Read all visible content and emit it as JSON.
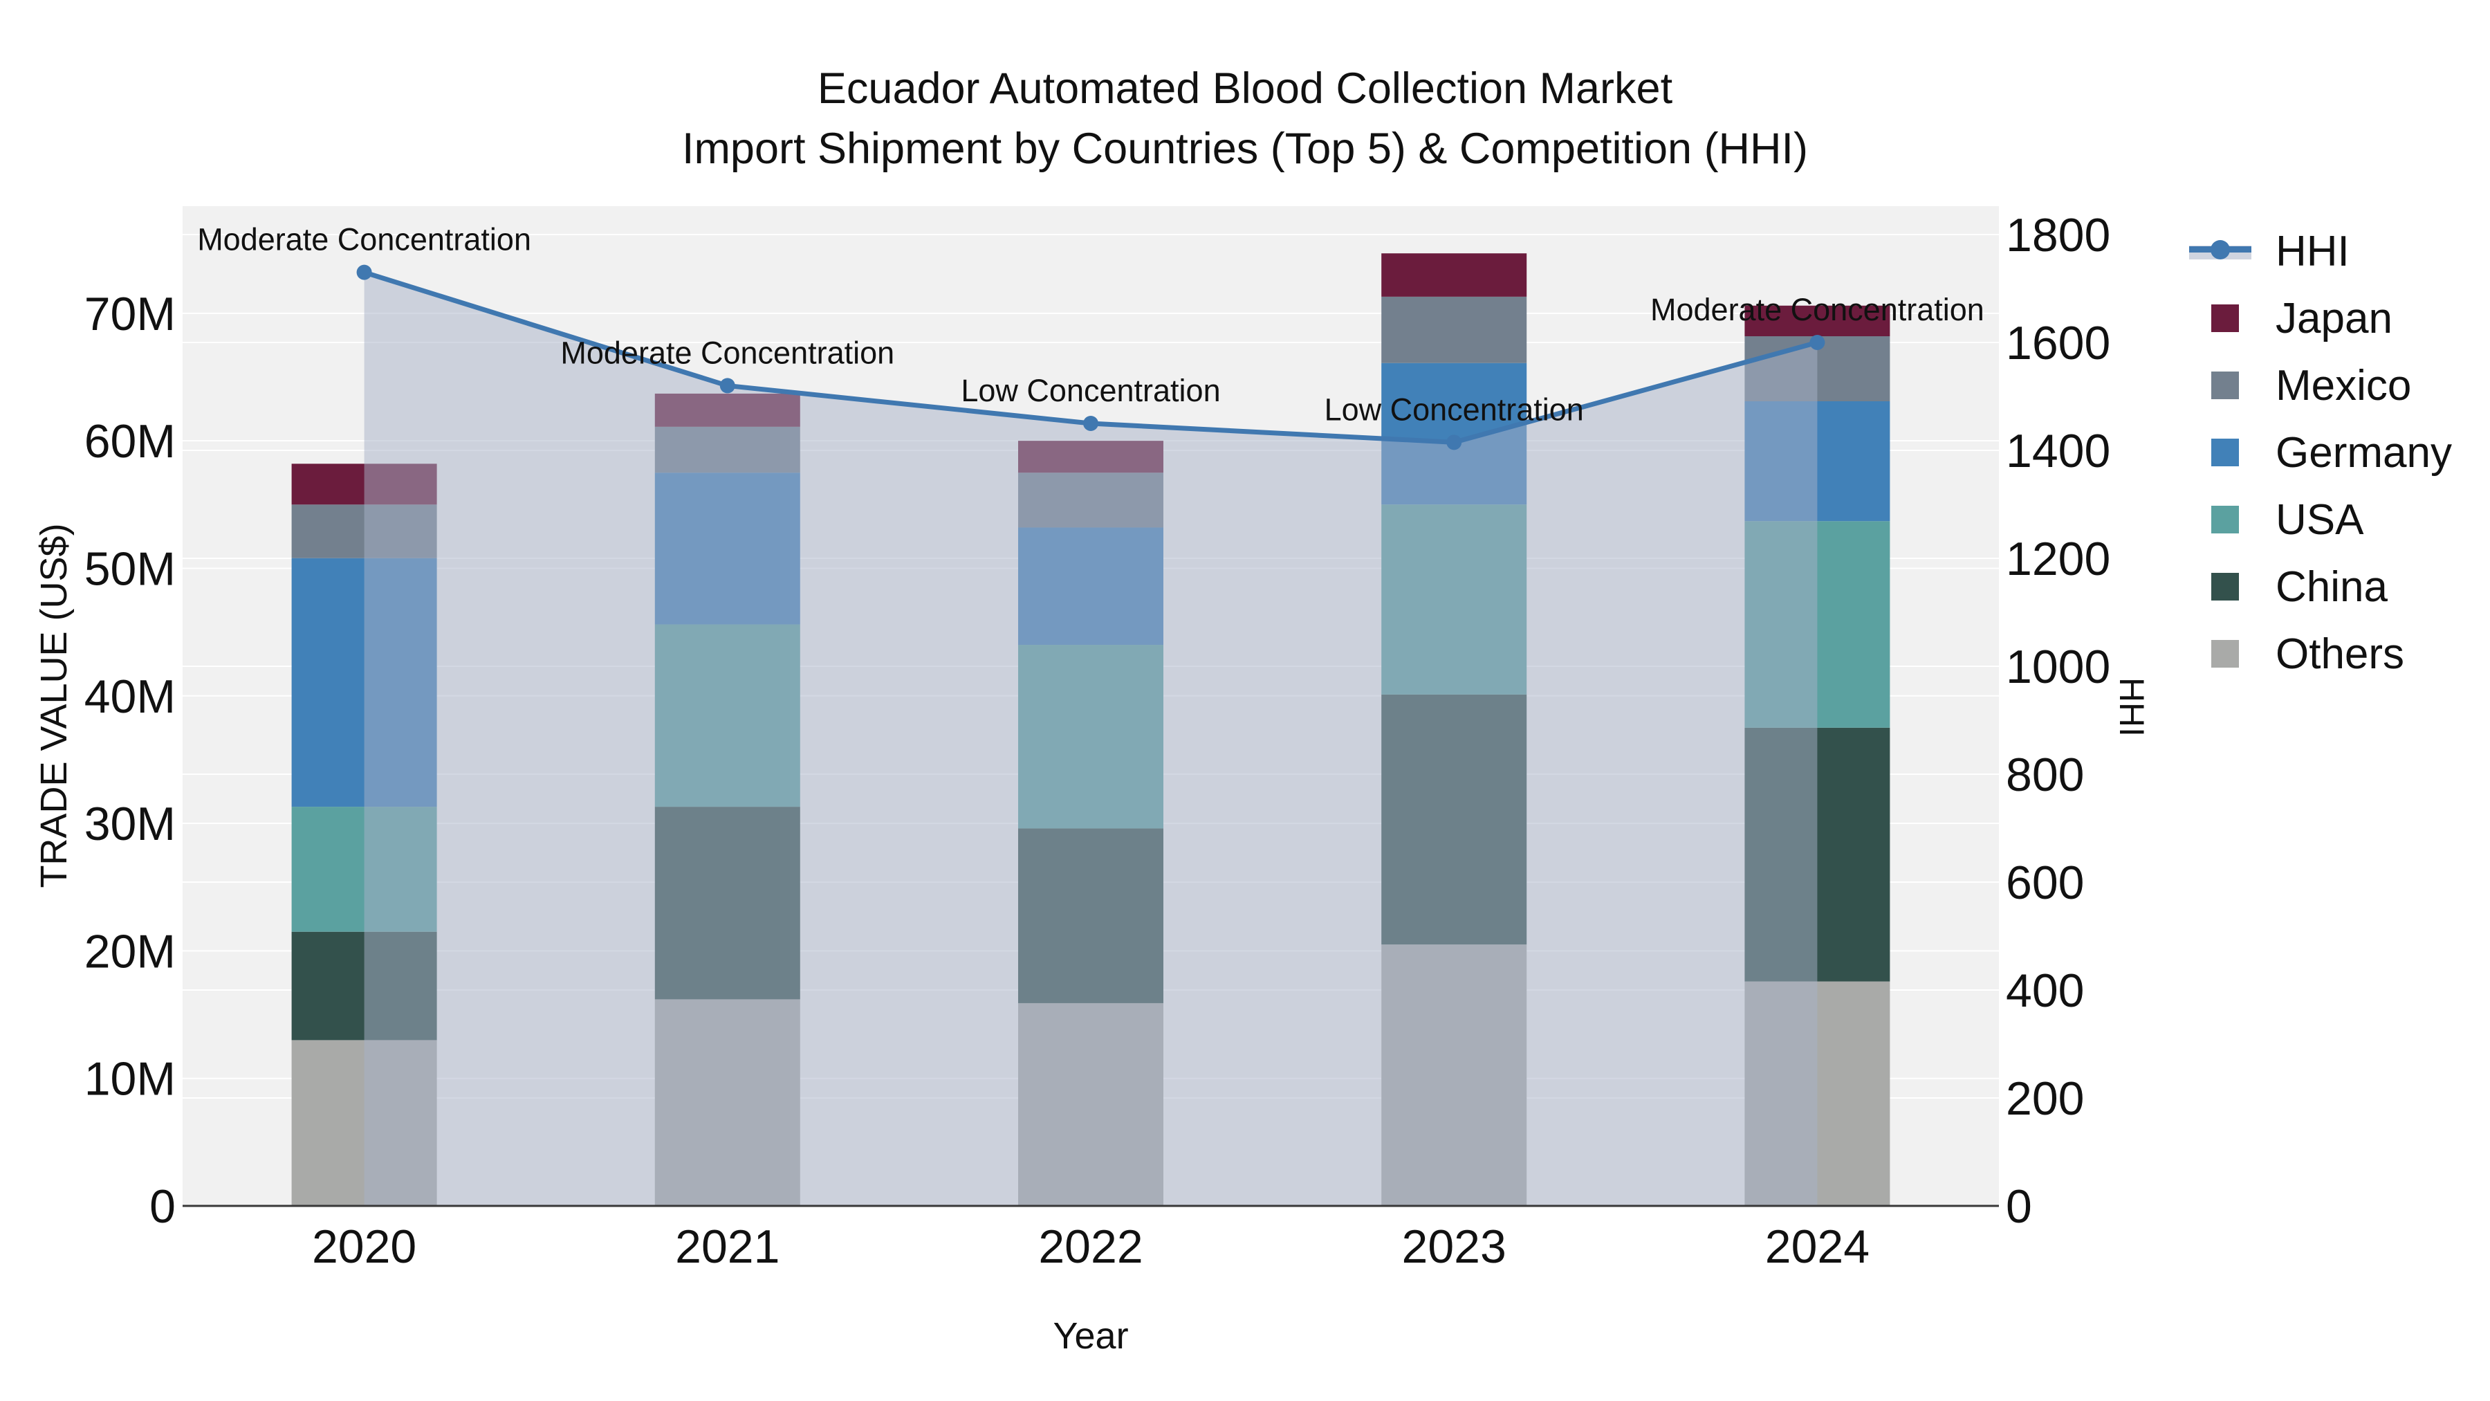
{
  "chart_data": {
    "type": "bar+line",
    "title": "Ecuador Automated Blood Collection Market",
    "subtitle": "Import Shipment by Countries (Top 5) & Competition (HHI)",
    "xlabel": "Year",
    "ylabel_left": "TRADE VALUE (US$)",
    "ylabel_right": "HHI",
    "categories": [
      "2020",
      "2021",
      "2022",
      "2023",
      "2024"
    ],
    "stack_order_bottom_to_top": [
      "Others",
      "China",
      "USA",
      "Germany",
      "Mexico",
      "Japan"
    ],
    "series": [
      {
        "name": "Japan",
        "color": "#6b1c3d",
        "values": [
          3.2,
          2.6,
          2.5,
          3.4,
          2.4
        ]
      },
      {
        "name": "Mexico",
        "color": "#73808e",
        "values": [
          4.2,
          3.6,
          4.3,
          5.2,
          5.1
        ]
      },
      {
        "name": "Germany",
        "color": "#4181b8",
        "values": [
          19.5,
          11.9,
          9.2,
          11.1,
          9.4
        ]
      },
      {
        "name": "USA",
        "color": "#5ba1a0",
        "values": [
          9.8,
          14.3,
          14.4,
          14.9,
          16.2
        ]
      },
      {
        "name": "China",
        "color": "#33514c",
        "values": [
          8.5,
          15.1,
          13.7,
          19.6,
          19.9
        ]
      },
      {
        "name": "Others",
        "color": "#a9aaa8",
        "values": [
          13.0,
          16.2,
          15.9,
          20.5,
          17.6
        ]
      }
    ],
    "bar_totals": [
      58.2,
      63.7,
      60.0,
      74.7,
      70.6
    ],
    "hhi": {
      "name": "HHI",
      "color": "#4078b0",
      "values": [
        1730,
        1520,
        1450,
        1415,
        1600
      ],
      "area_fill": "#a7b1c7",
      "area_opacity": 0.5
    },
    "annotations": [
      {
        "year": "2020",
        "text": "Moderate Concentration"
      },
      {
        "year": "2021",
        "text": "Moderate Concentration"
      },
      {
        "year": "2022",
        "text": "Low Concentration"
      },
      {
        "year": "2023",
        "text": "Low Concentration"
      },
      {
        "year": "2024",
        "text": "Moderate Concentration"
      }
    ],
    "y_left": {
      "ticks": [
        "0",
        "10M",
        "20M",
        "30M",
        "40M",
        "50M",
        "60M",
        "70M"
      ],
      "tick_values": [
        0,
        10,
        20,
        30,
        40,
        50,
        60,
        70
      ],
      "max": 78.4,
      "unit": "M"
    },
    "y_right": {
      "ticks": [
        "0",
        "200",
        "400",
        "600",
        "800",
        "1000",
        "1200",
        "1400",
        "1600",
        "1800"
      ],
      "tick_values": [
        0,
        200,
        400,
        600,
        800,
        1000,
        1200,
        1400,
        1600,
        1800
      ],
      "max": 1852.6
    },
    "legend_order": [
      "HHI",
      "Japan",
      "Mexico",
      "Germany",
      "USA",
      "China",
      "Others"
    ],
    "grid": "on",
    "legend_position": "right"
  },
  "colors": {
    "plot_bg": "#f1f1f1",
    "grid": "#ffffff",
    "axis_line": "#383838",
    "text": "#111111"
  }
}
